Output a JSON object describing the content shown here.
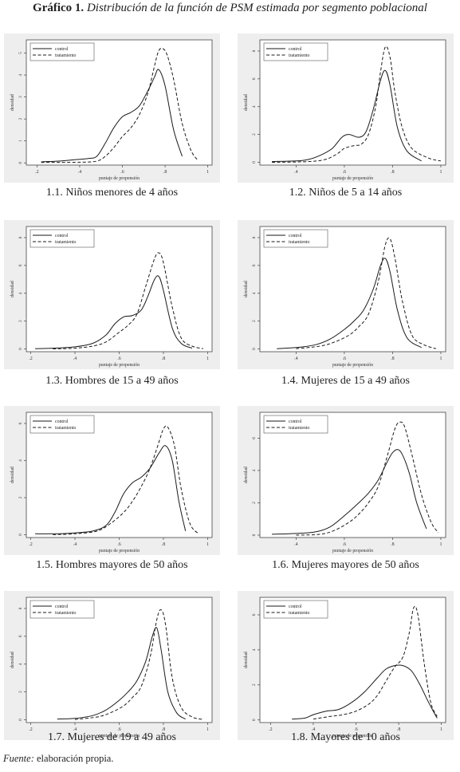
{
  "figure": {
    "title_bold": "Gráfico 1.",
    "title_italic": "Distribución de la función de PSM estimada por segmento poblacional",
    "source_label": "Fuente:",
    "source_text": "elaboración propia."
  },
  "chart_data": [
    {
      "type": "line",
      "caption": "1.1. Niños menores de 4 años",
      "xlabel": "puntaje de propensión",
      "ylabel": "densidad",
      "xlim": [
        0.15,
        1.02
      ],
      "xticks": [
        0.2,
        0.4,
        0.6,
        0.8,
        1
      ],
      "xticklabels": [
        ".2",
        ".4",
        ".6",
        ".8",
        "1"
      ],
      "ylim": [
        -0.1,
        5.6
      ],
      "yticks": [
        0,
        1,
        2,
        3,
        4,
        5
      ],
      "yticklabels": [
        "0",
        "1",
        "2",
        "3",
        "4",
        "5"
      ],
      "legend": [
        "control",
        "tratamiento"
      ],
      "series": [
        {
          "name": "control",
          "style": "solid",
          "x": [
            0.22,
            0.3,
            0.38,
            0.44,
            0.48,
            0.52,
            0.56,
            0.6,
            0.64,
            0.68,
            0.72,
            0.75,
            0.77,
            0.8,
            0.84,
            0.88
          ],
          "y": [
            0.05,
            0.08,
            0.15,
            0.2,
            0.3,
            0.9,
            1.6,
            2.1,
            2.3,
            2.6,
            3.3,
            3.9,
            4.25,
            3.5,
            1.5,
            0.3
          ]
        },
        {
          "name": "tratamiento",
          "style": "dashed",
          "x": [
            0.22,
            0.4,
            0.48,
            0.52,
            0.56,
            0.6,
            0.64,
            0.68,
            0.72,
            0.75,
            0.77,
            0.79,
            0.81,
            0.84,
            0.88,
            0.92,
            0.95
          ],
          "y": [
            0.02,
            0.03,
            0.08,
            0.3,
            0.7,
            1.2,
            1.6,
            2.2,
            3.2,
            4.4,
            5.1,
            5.2,
            4.9,
            3.8,
            1.8,
            0.6,
            0.15
          ]
        }
      ]
    },
    {
      "type": "line",
      "caption": "1.2. Niños de 5 a 14 años",
      "xlabel": "puntaje de propensión",
      "ylabel": "densidad",
      "xlim": [
        0.25,
        1.02
      ],
      "xticks": [
        0.4,
        0.6,
        0.8,
        1
      ],
      "xticklabels": [
        ".4",
        ".6",
        ".8",
        "1"
      ],
      "ylim": [
        -0.2,
        8.8
      ],
      "yticks": [
        0,
        2,
        4,
        6,
        8
      ],
      "yticklabels": [
        "0",
        "2",
        "4",
        "6",
        "8"
      ],
      "legend": [
        "control",
        "tratamiento"
      ],
      "series": [
        {
          "name": "control",
          "style": "solid",
          "x": [
            0.3,
            0.4,
            0.45,
            0.5,
            0.55,
            0.59,
            0.62,
            0.66,
            0.69,
            0.72,
            0.75,
            0.77,
            0.79,
            0.82,
            0.86,
            0.92
          ],
          "y": [
            0.05,
            0.1,
            0.2,
            0.5,
            1.0,
            1.8,
            2.0,
            1.8,
            2.2,
            3.8,
            5.9,
            6.6,
            5.5,
            2.5,
            0.8,
            0.1
          ]
        },
        {
          "name": "tratamiento",
          "style": "dashed",
          "x": [
            0.3,
            0.45,
            0.52,
            0.57,
            0.6,
            0.64,
            0.67,
            0.7,
            0.73,
            0.75,
            0.77,
            0.79,
            0.81,
            0.84,
            0.88,
            0.95,
            1.0
          ],
          "y": [
            0.0,
            0.05,
            0.2,
            0.6,
            1.0,
            1.2,
            1.3,
            2.0,
            4.0,
            6.5,
            8.3,
            7.5,
            5.0,
            2.5,
            1.0,
            0.3,
            0.1
          ]
        }
      ]
    },
    {
      "type": "line",
      "caption": "1.3. Hombres de 15 a 49 años",
      "xlabel": "puntaje de propensión",
      "ylabel": "densidad",
      "xlim": [
        0.18,
        1.02
      ],
      "xticks": [
        0.2,
        0.4,
        0.6,
        0.8,
        1
      ],
      "xticklabels": [
        ".2",
        ".4",
        ".6",
        ".8",
        "1"
      ],
      "ylim": [
        -0.2,
        8.8
      ],
      "yticks": [
        0,
        2,
        4,
        6,
        8
      ],
      "yticklabels": [
        "0",
        "2",
        "4",
        "6",
        "8"
      ],
      "legend": [
        "control",
        "tratamiento"
      ],
      "series": [
        {
          "name": "control",
          "style": "solid",
          "x": [
            0.22,
            0.3,
            0.4,
            0.48,
            0.54,
            0.58,
            0.62,
            0.66,
            0.7,
            0.73,
            0.76,
            0.78,
            0.8,
            0.84,
            0.88,
            0.93
          ],
          "y": [
            0.02,
            0.05,
            0.15,
            0.4,
            1.0,
            1.8,
            2.3,
            2.4,
            2.8,
            3.8,
            5.0,
            5.2,
            4.2,
            1.5,
            0.4,
            0.05
          ]
        },
        {
          "name": "tratamiento",
          "style": "dashed",
          "x": [
            0.3,
            0.4,
            0.48,
            0.54,
            0.6,
            0.64,
            0.68,
            0.72,
            0.76,
            0.78,
            0.8,
            0.84,
            0.88,
            0.93,
            0.98
          ],
          "y": [
            0.0,
            0.05,
            0.2,
            0.5,
            1.2,
            1.7,
            2.5,
            4.5,
            6.5,
            6.9,
            6.2,
            3.0,
            0.8,
            0.2,
            0.02
          ]
        }
      ]
    },
    {
      "type": "line",
      "caption": "1.4. Mujeres de 15 a 49 años",
      "xlabel": "puntaje de propensión",
      "ylabel": "densidad",
      "xlim": [
        0.25,
        1.02
      ],
      "xticks": [
        0.4,
        0.6,
        0.8,
        1
      ],
      "xticklabels": [
        ".4",
        ".6",
        ".8",
        "1"
      ],
      "ylim": [
        -0.2,
        8.8
      ],
      "yticks": [
        0,
        2,
        4,
        6,
        8
      ],
      "yticklabels": [
        "0",
        "2",
        "4",
        "6",
        "8"
      ],
      "legend": [
        "control",
        "tratamiento"
      ],
      "series": [
        {
          "name": "control",
          "style": "solid",
          "x": [
            0.32,
            0.4,
            0.48,
            0.54,
            0.6,
            0.64,
            0.68,
            0.72,
            0.75,
            0.77,
            0.79,
            0.82,
            0.86,
            0.92
          ],
          "y": [
            0.02,
            0.1,
            0.3,
            0.7,
            1.4,
            2.0,
            2.8,
            4.3,
            6.0,
            6.5,
            5.5,
            2.8,
            0.8,
            0.1
          ]
        },
        {
          "name": "tratamiento",
          "style": "dashed",
          "x": [
            0.4,
            0.5,
            0.56,
            0.62,
            0.66,
            0.7,
            0.74,
            0.77,
            0.79,
            0.81,
            0.84,
            0.88,
            0.93,
            0.98
          ],
          "y": [
            0.02,
            0.2,
            0.5,
            1.0,
            1.6,
            2.5,
            4.8,
            7.5,
            7.9,
            6.5,
            3.5,
            1.0,
            0.3,
            0.02
          ]
        }
      ]
    },
    {
      "type": "line",
      "caption": "1.5. Hombres mayores de 50 años",
      "xlabel": "puntaje de propensión",
      "ylabel": "densidad",
      "xlim": [
        0.18,
        1.02
      ],
      "xticks": [
        0.2,
        0.4,
        0.6,
        0.8,
        1
      ],
      "xticklabels": [
        ".2",
        ".4",
        ".6",
        ".8",
        "1"
      ],
      "ylim": [
        -0.15,
        6.6
      ],
      "yticks": [
        0,
        2,
        4,
        6
      ],
      "yticklabels": [
        "0",
        "2",
        "4",
        "6"
      ],
      "legend": [
        "control",
        "tratamiento"
      ],
      "series": [
        {
          "name": "control",
          "style": "solid",
          "x": [
            0.22,
            0.3,
            0.4,
            0.48,
            0.54,
            0.58,
            0.62,
            0.66,
            0.7,
            0.74,
            0.78,
            0.81,
            0.84,
            0.87,
            0.9
          ],
          "y": [
            0.05,
            0.05,
            0.1,
            0.2,
            0.5,
            1.2,
            2.2,
            2.8,
            3.1,
            3.6,
            4.4,
            4.8,
            4.0,
            1.8,
            0.2
          ]
        },
        {
          "name": "tratamiento",
          "style": "dashed",
          "x": [
            0.3,
            0.4,
            0.5,
            0.56,
            0.62,
            0.66,
            0.7,
            0.74,
            0.78,
            0.8,
            0.82,
            0.85,
            0.88,
            0.92,
            0.96
          ],
          "y": [
            0.0,
            0.05,
            0.2,
            0.6,
            1.2,
            1.8,
            2.6,
            3.6,
            5.0,
            5.7,
            5.8,
            4.8,
            2.5,
            0.6,
            0.05
          ]
        }
      ]
    },
    {
      "type": "line",
      "caption": "1.6. Mujeres mayores de 50 años",
      "xlabel": "puntaje de propensión",
      "ylabel": "densidad",
      "xlim": [
        0.25,
        1.02
      ],
      "xticks": [
        0.4,
        0.6,
        0.8,
        1
      ],
      "xticklabels": [
        ".4",
        ".6",
        ".8",
        "1"
      ],
      "ylim": [
        -0.15,
        7.6
      ],
      "yticks": [
        0,
        2,
        4,
        6
      ],
      "yticklabels": [
        "0",
        "2",
        "4",
        "6"
      ],
      "legend": [
        "control",
        "tratamiento"
      ],
      "series": [
        {
          "name": "control",
          "style": "solid",
          "x": [
            0.3,
            0.4,
            0.48,
            0.54,
            0.6,
            0.66,
            0.7,
            0.74,
            0.78,
            0.8,
            0.82,
            0.84,
            0.87,
            0.9,
            0.94
          ],
          "y": [
            0.05,
            0.1,
            0.2,
            0.5,
            1.2,
            2.0,
            2.6,
            3.4,
            4.6,
            5.1,
            5.3,
            5.0,
            3.8,
            2.0,
            0.4
          ]
        },
        {
          "name": "tratamiento",
          "style": "dashed",
          "x": [
            0.4,
            0.5,
            0.56,
            0.62,
            0.66,
            0.7,
            0.74,
            0.78,
            0.81,
            0.83,
            0.85,
            0.88,
            0.92,
            0.96,
            0.99
          ],
          "y": [
            0.0,
            0.05,
            0.3,
            0.8,
            1.3,
            2.0,
            3.0,
            5.0,
            6.6,
            7.0,
            6.7,
            5.0,
            2.5,
            0.8,
            0.15
          ]
        }
      ]
    },
    {
      "type": "line",
      "caption": "1.7. Mujeres de 19 a 49 años",
      "xlabel": "puntaje de propensión",
      "ylabel": "densidad",
      "xlim": [
        0.18,
        1.02
      ],
      "xticks": [
        0.2,
        0.4,
        0.6,
        0.8,
        1
      ],
      "xticklabels": [
        ".2",
        ".4",
        ".6",
        ".8",
        "1"
      ],
      "ylim": [
        -0.2,
        8.8
      ],
      "yticks": [
        0,
        2,
        4,
        6,
        8
      ],
      "yticklabels": [
        "0",
        "2",
        "4",
        "6",
        "8"
      ],
      "legend": [
        "control",
        "tratamiento"
      ],
      "series": [
        {
          "name": "control",
          "style": "solid",
          "x": [
            0.32,
            0.4,
            0.48,
            0.54,
            0.6,
            0.64,
            0.68,
            0.72,
            0.75,
            0.77,
            0.79,
            0.82,
            0.86,
            0.9
          ],
          "y": [
            0.05,
            0.1,
            0.3,
            0.7,
            1.4,
            2.0,
            2.8,
            4.2,
            6.0,
            6.6,
            5.0,
            2.0,
            0.5,
            0.05
          ]
        },
        {
          "name": "tratamiento",
          "style": "dashed",
          "x": [
            0.4,
            0.5,
            0.56,
            0.62,
            0.66,
            0.7,
            0.74,
            0.77,
            0.79,
            0.81,
            0.84,
            0.88,
            0.93,
            0.98
          ],
          "y": [
            0.02,
            0.2,
            0.5,
            1.0,
            1.6,
            2.4,
            4.5,
            7.2,
            7.9,
            6.8,
            3.0,
            0.9,
            0.2,
            0.02
          ]
        }
      ]
    },
    {
      "type": "line",
      "caption": "1.8. Mayores de 10 años",
      "xlabel": "puntaje de propensión",
      "ylabel": "densidad",
      "xlim": [
        0.15,
        1.02
      ],
      "xticks": [
        0.2,
        0.4,
        0.6,
        0.8,
        1
      ],
      "xticklabels": [
        ".2",
        ".4",
        ".6",
        ".8",
        "1"
      ],
      "ylim": [
        -0.15,
        7.0
      ],
      "yticks": [
        0,
        2,
        4,
        6
      ],
      "yticklabels": [
        "0",
        "2",
        "4",
        "6"
      ],
      "legend": [
        "control",
        "tratamiento"
      ],
      "series": [
        {
          "name": "control",
          "style": "solid",
          "x": [
            0.3,
            0.36,
            0.4,
            0.46,
            0.52,
            0.58,
            0.64,
            0.7,
            0.74,
            0.78,
            0.82,
            0.86,
            0.9,
            0.94,
            0.98
          ],
          "y": [
            0.05,
            0.1,
            0.3,
            0.5,
            0.6,
            1.0,
            1.6,
            2.4,
            2.9,
            3.1,
            3.1,
            2.8,
            2.0,
            1.0,
            0.1
          ]
        },
        {
          "name": "tratamiento",
          "style": "dashed",
          "x": [
            0.4,
            0.48,
            0.54,
            0.6,
            0.66,
            0.7,
            0.74,
            0.78,
            0.82,
            0.85,
            0.87,
            0.89,
            0.92,
            0.95,
            0.98
          ],
          "y": [
            0.05,
            0.2,
            0.3,
            0.5,
            0.9,
            1.4,
            2.2,
            3.0,
            3.6,
            5.0,
            6.4,
            6.0,
            3.2,
            1.0,
            0.2
          ]
        }
      ]
    }
  ]
}
